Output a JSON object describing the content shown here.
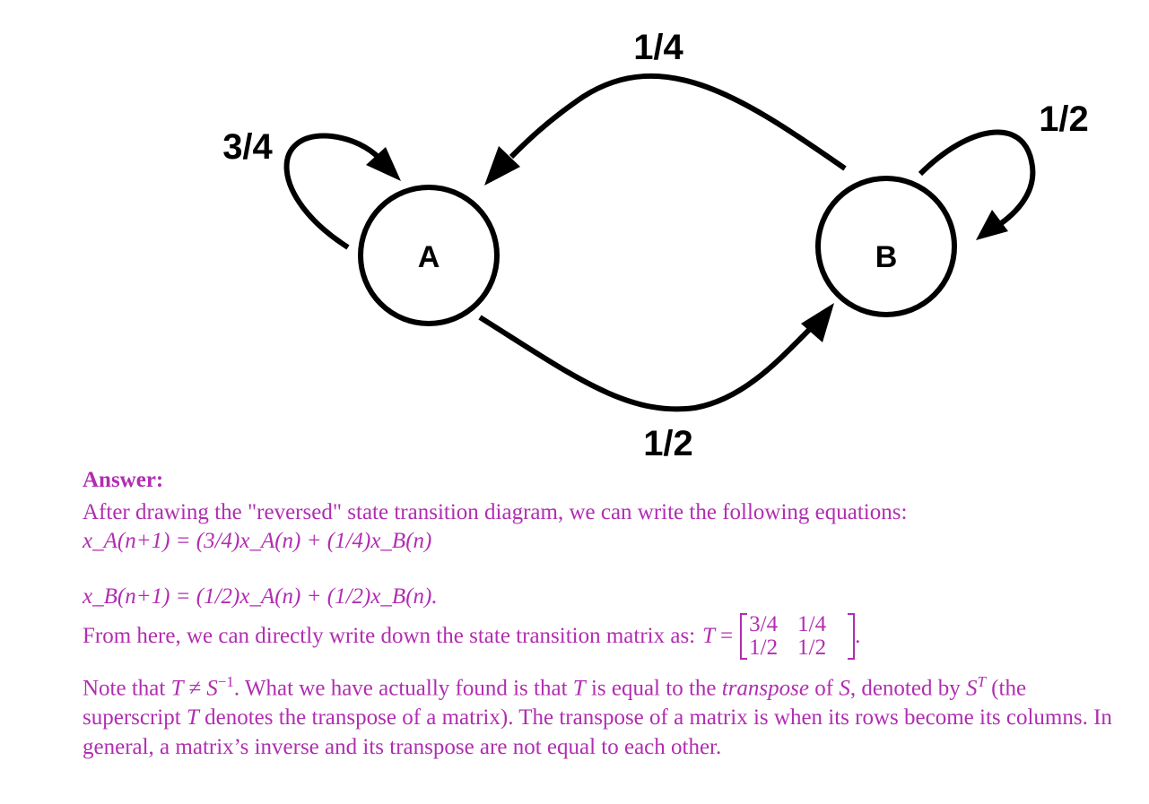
{
  "diagram": {
    "nodes": [
      {
        "id": "A",
        "label": "A"
      },
      {
        "id": "B",
        "label": "B"
      }
    ],
    "edges": [
      {
        "from": "A",
        "to": "A",
        "label": "3/4"
      },
      {
        "from": "B",
        "to": "A",
        "label": "1/4"
      },
      {
        "from": "B",
        "to": "B",
        "label": "1/2"
      },
      {
        "from": "A",
        "to": "B",
        "label": "1/2"
      }
    ]
  },
  "answer": {
    "heading": "Answer:",
    "intro": "After drawing the \"reversed\" state transition diagram, we can write the following equations:",
    "eq1": "x_A(n+1) = (3/4)x_A(n) + (1/4)x_B(n)",
    "eq2": "x_B(n+1) = (1/2)x_A(n) + (1/2)x_B(n).",
    "matrix_intro": "From here, we can directly write down the state transition matrix as:",
    "matrix_name": "T",
    "matrix": [
      [
        "3/4",
        "1/4"
      ],
      [
        "1/2",
        "1/2"
      ]
    ],
    "note_part1": "Note that",
    "note_relation": "T ≠ S",
    "note_relation_sup": "−1",
    "note_part2": ". What we have actually found is that",
    "note_part3": "is equal to the",
    "note_transpose_word": "transpose",
    "note_part4": "of",
    "note_part5": ", denoted by",
    "note_part6": "(the superscript",
    "note_part7": "denotes the transpose of a matrix). The transpose of a matrix is when its rows become its columns. In general, a matrix’s inverse and its transpose are not equal to each other.",
    "sym_T": "T",
    "sym_S": "S"
  },
  "colors": {
    "text": "#b12db1",
    "diagram": "#000000"
  }
}
